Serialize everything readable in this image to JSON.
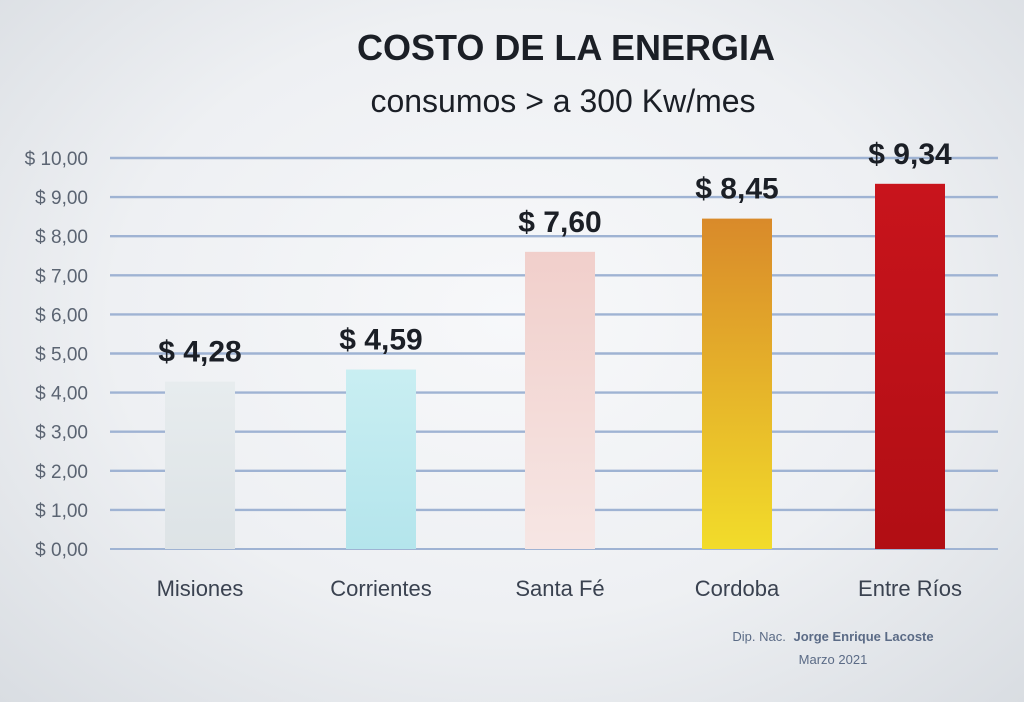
{
  "chart_data": {
    "type": "bar",
    "title": "COSTO DE LA ENERGIA",
    "subtitle": "consumos > a 300 Kw/mes",
    "categories": [
      "Misiones",
      "Corrientes",
      "Santa Fé",
      "Cordoba",
      "Entre Ríos"
    ],
    "values": [
      4.28,
      4.59,
      7.6,
      8.45,
      9.34
    ],
    "data_labels": [
      "$ 4,28",
      "$ 4,59",
      "$ 7,60",
      "$ 8,45",
      "$ 9,34"
    ],
    "bar_colors": [
      [
        "#e7ecee",
        "#dde3e6"
      ],
      [
        "#c9eef2",
        "#b4e5ec"
      ],
      [
        "#f1cfcb",
        "#f6e6e4"
      ],
      [
        "#d98a2a",
        "#f2dc2a"
      ],
      [
        "#c8141c",
        "#b10e14"
      ]
    ],
    "ylim": [
      0,
      10
    ],
    "yticks": [
      "$ 0,00",
      "$ 1,00",
      "$ 2,00",
      "$ 3,00",
      "$ 4,00",
      "$ 5,00",
      "$ 6,00",
      "$ 7,00",
      "$ 8,00",
      "$ 9,00",
      "$ 10,00"
    ],
    "grid": true,
    "grid_color": "#9fb3d3",
    "legend": "none"
  },
  "credit": {
    "prefix": "Dip. Nac.",
    "name": "Jorge Enrique Lacoste",
    "date": "Marzo 2021"
  }
}
